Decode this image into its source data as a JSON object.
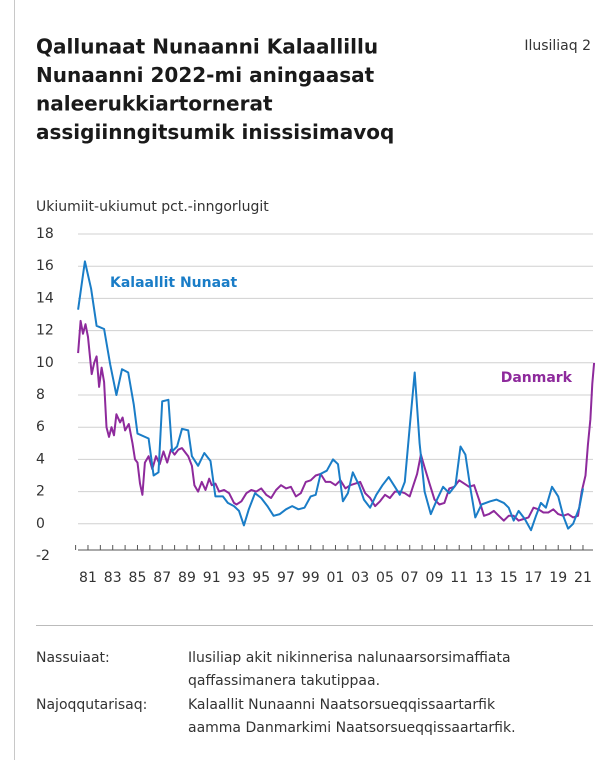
{
  "chart_data": {
    "type": "line",
    "title": [
      "Qallunaat Nunaanni Kalaallillu",
      "Nunaanni 2022-mi aningaasat",
      "naleerukkiartornerat",
      "assigiinngitsumik inissisimavoq"
    ],
    "figure_label": "Ilusiliaq 2",
    "ylabel": "Ukiumiit-ukiumut pct.-inngorlugit",
    "ylim": [
      -2,
      18
    ],
    "yticks": [
      -2,
      0,
      2,
      4,
      6,
      8,
      10,
      12,
      14,
      16,
      18
    ],
    "xlim": [
      1980,
      2022
    ],
    "xticks": [
      {
        "value": 1981,
        "label": "81"
      },
      {
        "value": 1983,
        "label": "83"
      },
      {
        "value": 1985,
        "label": "85"
      },
      {
        "value": 1987,
        "label": "87"
      },
      {
        "value": 1989,
        "label": "89"
      },
      {
        "value": 1991,
        "label": "91"
      },
      {
        "value": 1993,
        "label": "93"
      },
      {
        "value": 1995,
        "label": "95"
      },
      {
        "value": 1997,
        "label": "97"
      },
      {
        "value": 1999,
        "label": "99"
      },
      {
        "value": 2001,
        "label": "01"
      },
      {
        "value": 2003,
        "label": "03"
      },
      {
        "value": 2005,
        "label": "05"
      },
      {
        "value": 2007,
        "label": "07"
      },
      {
        "value": 2009,
        "label": "09"
      },
      {
        "value": 2011,
        "label": "11"
      },
      {
        "value": 2013,
        "label": "13"
      },
      {
        "value": 2015,
        "label": "15"
      },
      {
        "value": 2017,
        "label": "17"
      },
      {
        "value": 2019,
        "label": "19"
      },
      {
        "value": 2021,
        "label": "21"
      }
    ],
    "grid": true,
    "series": [
      {
        "name": "Kalaallit Nunaat",
        "color": "#1a7dc7",
        "x": [
          1980.2,
          1980.75,
          1981.25,
          1981.7,
          1982.3,
          1982.8,
          1983.3,
          1983.75,
          1984.25,
          1984.7,
          1985.0,
          1985.9,
          1986.3,
          1986.7,
          1987.0,
          1987.5,
          1987.8,
          1988.2,
          1988.6,
          1989.1,
          1989.4,
          1989.9,
          1990.4,
          1990.9,
          1991.3,
          1991.9,
          1992.3,
          1992.8,
          1993.2,
          1993.6,
          1994.0,
          1994.5,
          1995.0,
          1995.5,
          1996.0,
          1996.5,
          1997.0,
          1997.5,
          1998.0,
          1998.5,
          1999.0,
          1999.4,
          1999.8,
          2000.3,
          2000.8,
          2001.2,
          2001.6,
          2002.0,
          2002.4,
          2002.9,
          2003.3,
          2003.8,
          2004.3,
          2004.8,
          2005.3,
          2005.8,
          2006.2,
          2006.6,
          2007.0,
          2007.4,
          2007.8,
          2008.2,
          2008.7,
          2009.2,
          2009.7,
          2010.2,
          2010.7,
          2011.1,
          2011.5,
          2011.9,
          2012.3,
          2012.8,
          2013.5,
          2014.0,
          2014.6,
          2015.0,
          2015.4,
          2015.8,
          2016.3,
          2016.8,
          2017.2,
          2017.6,
          2018.0,
          2018.5,
          2019.0,
          2019.4,
          2019.8,
          2020.2,
          2020.7,
          2021.0
        ],
        "values": [
          13.3,
          16.3,
          14.6,
          12.3,
          12.1,
          9.9,
          8.0,
          9.6,
          9.4,
          7.4,
          5.6,
          5.3,
          3.0,
          3.2,
          7.6,
          7.7,
          4.5,
          4.8,
          5.9,
          5.8,
          4.2,
          3.6,
          4.4,
          3.9,
          1.7,
          1.7,
          1.3,
          1.1,
          0.8,
          -0.1,
          0.9,
          1.9,
          1.6,
          1.1,
          0.5,
          0.6,
          0.9,
          1.1,
          0.9,
          1.0,
          1.7,
          1.8,
          3.1,
          3.3,
          4.0,
          3.7,
          1.4,
          1.9,
          3.2,
          2.4,
          1.5,
          1.0,
          1.8,
          2.4,
          2.9,
          2.3,
          1.8,
          2.6,
          6.0,
          9.4,
          5.0,
          2.0,
          0.6,
          1.5,
          2.3,
          1.9,
          2.4,
          4.8,
          4.3,
          2.2,
          0.4,
          1.2,
          1.4,
          1.5,
          1.3,
          1.0,
          0.2,
          0.8,
          0.3,
          -0.4,
          0.5,
          1.3,
          1.0,
          2.3,
          1.7,
          0.5,
          -0.3,
          0.0,
          1.0,
          2.2
        ]
      },
      {
        "name": "Danmark",
        "color": "#8e2a9c",
        "x": [
          1980.2,
          1980.4,
          1980.6,
          1980.8,
          1981.0,
          1981.3,
          1981.5,
          1981.7,
          1981.9,
          1982.1,
          1982.3,
          1982.5,
          1982.7,
          1982.9,
          1983.1,
          1983.3,
          1983.6,
          1983.8,
          1984.0,
          1984.3,
          1984.6,
          1984.8,
          1985.0,
          1985.2,
          1985.4,
          1985.6,
          1985.9,
          1986.2,
          1986.5,
          1986.8,
          1987.1,
          1987.4,
          1987.7,
          1988.0,
          1988.3,
          1988.6,
          1988.9,
          1989.1,
          1989.4,
          1989.6,
          1989.9,
          1990.2,
          1990.5,
          1990.8,
          1991.0,
          1991.3,
          1991.6,
          1992.0,
          1992.4,
          1992.8,
          1993.0,
          1993.4,
          1993.8,
          1994.2,
          1994.6,
          1995.0,
          1995.4,
          1995.8,
          1996.2,
          1996.6,
          1997.0,
          1997.4,
          1997.8,
          1998.2,
          1998.6,
          1999.0,
          1999.4,
          1999.8,
          2000.2,
          2000.6,
          2001.0,
          2001.4,
          2001.8,
          2002.2,
          2002.6,
          2003.0,
          2003.4,
          2003.8,
          2004.2,
          2004.6,
          2005.0,
          2005.4,
          2005.8,
          2006.2,
          2006.6,
          2007.0,
          2007.3,
          2007.6,
          2007.9,
          2008.2,
          2008.6,
          2009.0,
          2009.4,
          2009.8,
          2010.2,
          2010.6,
          2011.0,
          2011.4,
          2011.8,
          2012.2,
          2012.6,
          2013.0,
          2013.4,
          2013.8,
          2014.2,
          2014.6,
          2015.0,
          2015.4,
          2015.8,
          2016.2,
          2016.6,
          2017.0,
          2017.4,
          2017.8,
          2018.2,
          2018.6,
          2019.0,
          2019.4,
          2019.8,
          2020.2,
          2020.6,
          2020.9,
          2021.2,
          2021.4,
          2021.6,
          2021.75,
          2021.9
        ],
        "values": [
          10.6,
          12.6,
          11.8,
          12.4,
          11.6,
          9.3,
          10.0,
          10.4,
          8.5,
          9.7,
          8.8,
          6.0,
          5.4,
          6.0,
          5.5,
          6.8,
          6.3,
          6.6,
          5.8,
          6.2,
          5.0,
          4.0,
          3.8,
          2.5,
          1.8,
          3.8,
          4.2,
          3.4,
          4.2,
          3.7,
          4.5,
          3.8,
          4.6,
          4.3,
          4.6,
          4.7,
          4.4,
          4.2,
          3.6,
          2.4,
          2.0,
          2.6,
          2.1,
          2.8,
          2.4,
          2.5,
          2.0,
          2.1,
          1.9,
          1.3,
          1.2,
          1.4,
          1.9,
          2.1,
          2.0,
          2.2,
          1.8,
          1.6,
          2.1,
          2.4,
          2.2,
          2.3,
          1.7,
          1.9,
          2.6,
          2.7,
          3.0,
          3.1,
          2.6,
          2.6,
          2.4,
          2.7,
          2.2,
          2.4,
          2.5,
          2.6,
          1.9,
          1.6,
          1.1,
          1.4,
          1.8,
          1.6,
          2.0,
          2.0,
          1.9,
          1.7,
          2.4,
          3.1,
          4.3,
          3.5,
          2.5,
          1.5,
          1.2,
          1.3,
          2.2,
          2.3,
          2.7,
          2.5,
          2.3,
          2.4,
          1.5,
          0.5,
          0.6,
          0.8,
          0.5,
          0.2,
          0.5,
          0.5,
          0.2,
          0.3,
          0.4,
          1.0,
          0.9,
          0.7,
          0.7,
          0.9,
          0.6,
          0.5,
          0.6,
          0.4,
          0.5,
          2.0,
          3.0,
          4.9,
          6.5,
          8.7,
          10.0
        ]
      }
    ],
    "notes": [
      {
        "label": "Nassuiaat:",
        "lines": [
          "Ilusiliap akit nikinnerisa nalunaarsorsimaffiata",
          "qaffassimanera takutippaa."
        ]
      },
      {
        "label": "Najoqqutarisaq:",
        "lines": [
          "Kalaallit Nunaanni Naatsorsueqqissaartarfik",
          "aamma Danmarkimi Naatsorsueqqissaartarfik."
        ]
      }
    ]
  }
}
